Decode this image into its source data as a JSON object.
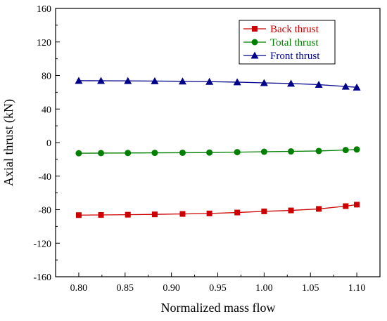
{
  "chart_data": {
    "type": "line",
    "title": "",
    "xlabel": "Normalized mass flow",
    "ylabel": "Axial thrust (kN)",
    "xlim": [
      0.775,
      1.125
    ],
    "ylim": [
      -160,
      160
    ],
    "x_ticks": [
      0.8,
      0.85,
      0.9,
      0.95,
      1.0,
      1.05,
      1.1
    ],
    "x_tick_labels": [
      "0.80",
      "0.85",
      "0.90",
      "0.95",
      "1.00",
      "1.05",
      "1.10"
    ],
    "y_ticks": [
      -160,
      -120,
      -80,
      -40,
      0,
      40,
      80,
      120,
      160
    ],
    "y_tick_labels": [
      "-160",
      "-120",
      "-80",
      "-40",
      "0",
      "40",
      "80",
      "120",
      "160"
    ],
    "grid": false,
    "legend_position": "top-right",
    "x": [
      0.8,
      0.824,
      0.853,
      0.882,
      0.912,
      0.941,
      0.971,
      1.0,
      1.029,
      1.059,
      1.088,
      1.1
    ],
    "series": [
      {
        "name": "Back thrust",
        "color": "#cc0000",
        "marker": "square",
        "values": [
          -86.5,
          -86.3,
          -86.0,
          -85.6,
          -85.1,
          -84.5,
          -83.4,
          -82.0,
          -80.9,
          -79.1,
          -75.8,
          -74.0
        ]
      },
      {
        "name": "Total thrust",
        "color": "#008000",
        "marker": "circle",
        "values": [
          -12.7,
          -12.5,
          -12.4,
          -12.2,
          -12.1,
          -11.9,
          -11.4,
          -10.9,
          -10.5,
          -10.0,
          -8.9,
          -8.2
        ]
      },
      {
        "name": "Front thrust",
        "color": "#00008b",
        "marker": "triangle",
        "values": [
          73.8,
          73.7,
          73.6,
          73.4,
          73.1,
          72.7,
          72.1,
          71.2,
          70.5,
          69.1,
          66.9,
          65.9
        ]
      }
    ]
  }
}
